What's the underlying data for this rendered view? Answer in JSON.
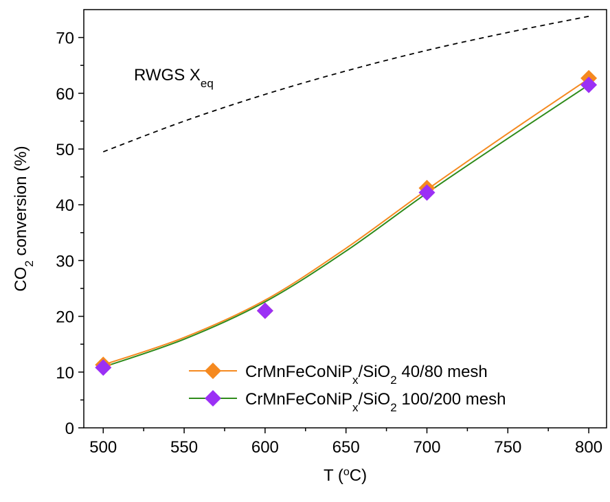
{
  "chart_data": {
    "type": "line",
    "x_label": [
      "T (",
      "o",
      "C)"
    ],
    "y_label": [
      "CO",
      "2",
      " conversion (%)"
    ],
    "annotation": [
      "RWGS X",
      "eq"
    ],
    "xlim": [
      488,
      811
    ],
    "ylim": [
      0,
      75
    ],
    "xticks": [
      500,
      550,
      600,
      650,
      700,
      750,
      800
    ],
    "yticks": [
      0,
      10,
      20,
      30,
      40,
      50,
      60,
      70
    ],
    "xminorticks": [
      525,
      575,
      625,
      675,
      725,
      775
    ],
    "yminorticks": [
      5,
      15,
      25,
      35,
      45,
      55,
      65
    ],
    "legend": "lower right",
    "x": [
      500,
      600,
      700,
      800
    ],
    "curve_x": [
      500,
      550,
      600,
      650,
      700,
      750,
      800
    ],
    "series": [
      {
        "name": [
          "CrMnFeCoNiP",
          "x",
          "/SiO",
          "2",
          " 40/80 mesh"
        ],
        "color": "#f5891f",
        "line_color": "#f5891f",
        "values": [
          11.3,
          21,
          43,
          62.7
        ],
        "curve_values": [
          11.3,
          16.2,
          22.9,
          32.2,
          42.7,
          52.8,
          62.6
        ]
      },
      {
        "name": [
          "CrMnFeCoNiP",
          "x",
          "/SiO",
          "2",
          " 100/200 mesh"
        ],
        "color": "#9b30f5",
        "line_color": "#2e8b1a",
        "values": [
          10.8,
          21,
          42.2,
          61.5
        ],
        "curve_values": [
          10.9,
          15.9,
          22.6,
          31.7,
          42.1,
          51.9,
          61.5
        ]
      }
    ],
    "equilibrium": {
      "color": "#000000",
      "values": [
        49.5,
        55,
        59.8,
        64,
        67.7,
        70.9,
        73.8
      ]
    }
  }
}
